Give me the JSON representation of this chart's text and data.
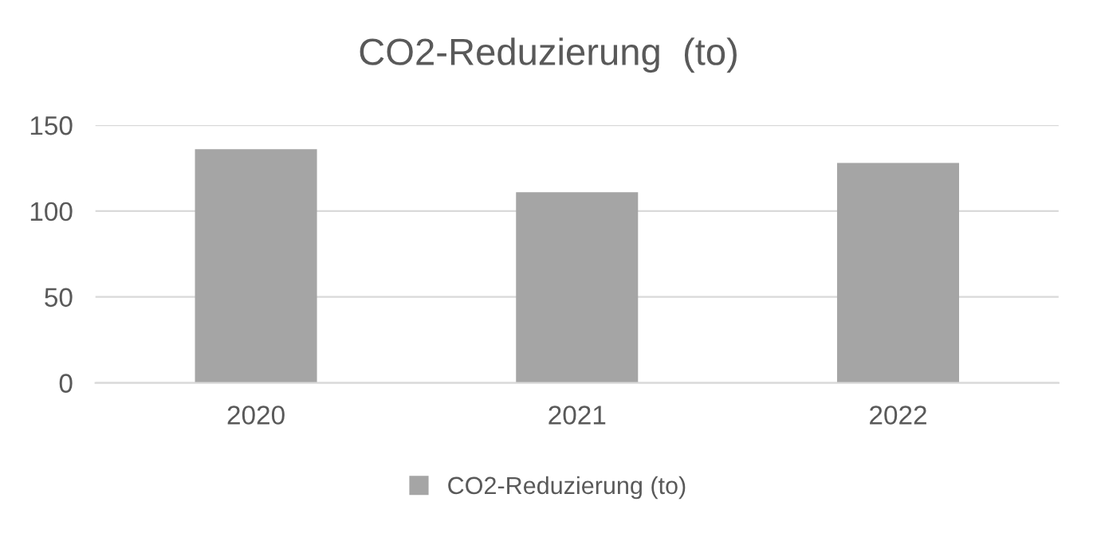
{
  "chart_data": {
    "type": "bar",
    "title": "CO2-Reduzierung  (to)",
    "categories": [
      "2020",
      "2021",
      "2022"
    ],
    "series": [
      {
        "name": "CO2-Reduzierung (to)",
        "color": "#a5a5a5",
        "values": [
          136,
          111,
          128
        ]
      }
    ],
    "ylim": [
      0,
      150
    ],
    "yticks": [
      0,
      50,
      100,
      150
    ],
    "grid": "y",
    "legend": "bottom"
  }
}
